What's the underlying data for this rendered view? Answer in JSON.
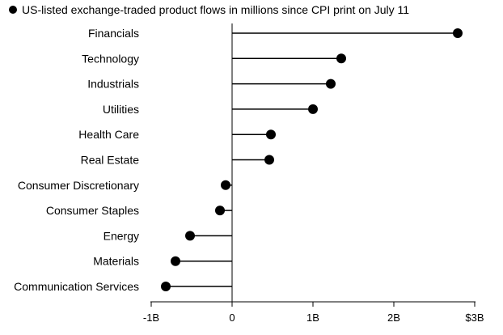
{
  "chart_data": {
    "type": "lollipop",
    "legend": {
      "label": "US-listed exchange-traded product flows in millions since CPI print on July 11",
      "placement": "top-left"
    },
    "categories": [
      "Financials",
      "Technology",
      "Industrials",
      "Utilities",
      "Health Care",
      "Real Estate",
      "Consumer Discretionary",
      "Consumer Staples",
      "Energy",
      "Materials",
      "Communication Services"
    ],
    "values": [
      2790,
      1350,
      1220,
      1000,
      480,
      460,
      -80,
      -150,
      -520,
      -700,
      -820
    ],
    "x_axis": {
      "range": [
        -1000,
        3000
      ],
      "ticks": [
        -1000,
        0,
        1000,
        2000,
        3000
      ],
      "tick_labels": [
        "-1B",
        "0",
        "1B",
        "2B",
        "$3B"
      ]
    },
    "grid": false,
    "colors": {
      "line": "#000000",
      "dot": "#000000"
    }
  }
}
